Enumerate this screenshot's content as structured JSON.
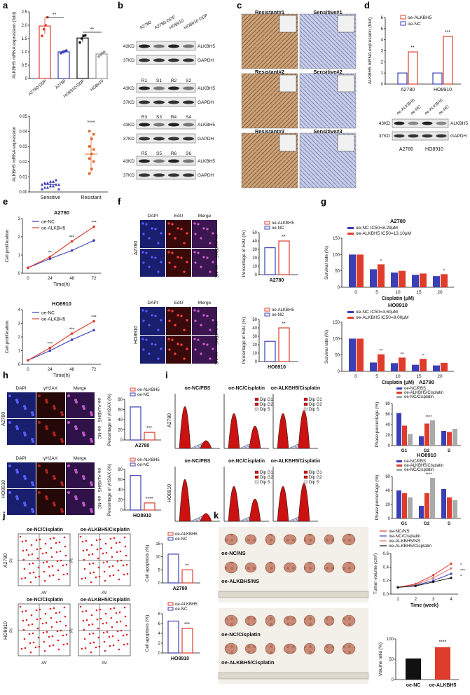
{
  "panel_labels": [
    "a",
    "b",
    "c",
    "d",
    "e",
    "f",
    "g",
    "h",
    "i",
    "j",
    "k"
  ],
  "panel_a": {
    "top": {
      "ylabel": "ALKBH5 mRNA expression (fold)",
      "categories": [
        "A2780-DDP",
        "A2780",
        "HO8910-DDP",
        "HO8910"
      ],
      "values": [
        1.97,
        1.0,
        1.52,
        0.92
      ],
      "errors": [
        0.3,
        0.08,
        0.15,
        0.1
      ],
      "points": [
        [
          1.6,
          1.85,
          2.0,
          2.3
        ],
        [
          0.95,
          1.0,
          1.02,
          1.05
        ],
        [
          1.35,
          1.5,
          1.6,
          1.62
        ],
        [
          0.82,
          0.9,
          0.95,
          1.0
        ]
      ],
      "colors": [
        "#e03c2c",
        "#3b3fb6",
        "#111111",
        "#999999"
      ],
      "yticks": [
        "0",
        "0.5",
        "1.0",
        "1.5",
        "2.0",
        "2.5"
      ],
      "ylim": [
        0,
        2.5
      ],
      "sig": [
        "**",
        "**"
      ]
    },
    "bottom": {
      "ylabel": "ALKBH5 mRNA expression",
      "categories": [
        "Sensitive",
        "Resistant"
      ],
      "means": [
        0.005,
        0.025
      ],
      "sd": [
        0.002,
        0.012
      ],
      "sensitive_points": [
        0.002,
        0.003,
        0.003,
        0.004,
        0.004,
        0.005,
        0.005,
        0.005,
        0.006,
        0.006,
        0.007,
        0.007,
        0.008,
        0.002
      ],
      "resistant_points": [
        0.012,
        0.015,
        0.02,
        0.022,
        0.025,
        0.028,
        0.03,
        0.035,
        0.038,
        0.04
      ],
      "colors": [
        "#3b3fb6",
        "#e06a2c"
      ],
      "yticks": [
        "0.00",
        "0.01",
        "0.02",
        "0.03",
        "0.04",
        "0.05"
      ],
      "ylim": [
        0,
        0.05
      ],
      "sig": "****"
    }
  },
  "panel_b": {
    "top_lanes": [
      "A2780",
      "A2780-DDP",
      "HO8910",
      "HO8910-DDP"
    ],
    "rows": [
      {
        "kd": "43KD",
        "name": "ALKBH5",
        "lanes": [
          "",
          "",
          "",
          ""
        ]
      },
      {
        "kd": "37KD",
        "name": "GAPDH",
        "lanes": [
          "",
          "",
          "",
          ""
        ]
      },
      {
        "kd": "43KD",
        "name": "ALKBH5",
        "lanes": [
          "R1",
          "S1",
          "R2",
          "S2"
        ]
      },
      {
        "kd": "37KD",
        "name": "GAPDH",
        "lanes": [
          "",
          "",
          "",
          ""
        ]
      },
      {
        "kd": "43KD",
        "name": "ALKBH5",
        "lanes": [
          "R3",
          "S3",
          "R4",
          "S4"
        ]
      },
      {
        "kd": "37KD",
        "name": "GAPDH",
        "lanes": [
          "",
          "",
          "",
          ""
        ]
      },
      {
        "kd": "43KD",
        "name": "ALKBH5",
        "lanes": [
          "R5",
          "S5",
          "R6",
          "S6"
        ]
      },
      {
        "kd": "37KD",
        "name": "GAPDH",
        "lanes": [
          "",
          "",
          "",
          ""
        ]
      }
    ]
  },
  "panel_c": {
    "tiles": [
      "Resistant#1",
      "Sensitive#1",
      "Resistant#2",
      "Sensitive#2",
      "Resistant#3",
      "Sensitive#3"
    ]
  },
  "panel_d": {
    "ylabel": "ALKBH5 mRNA expression (fold)",
    "legend": [
      "oe-ALKBH5",
      "oe-NC"
    ],
    "categories": [
      "A2780",
      "HO8910"
    ],
    "nc_values": [
      1.0,
      1.0
    ],
    "oe_values": [
      2.9,
      4.3
    ],
    "yticks": [
      "0",
      "1",
      "2",
      "3",
      "4",
      "5",
      "6"
    ],
    "ylim": [
      0,
      6
    ],
    "sig": [
      "**",
      "***"
    ],
    "blot_lanes": [
      "oe-ALKBH5",
      "oe-NC",
      "oe-ALKBH5",
      "oe-NC"
    ],
    "blot_rows": [
      {
        "kd": "43KD",
        "name": "ALKBH5"
      },
      {
        "kd": "37KD",
        "name": "GAPDH"
      }
    ],
    "blot_groups": [
      "A2780",
      "HO8910"
    ]
  },
  "panel_e": {
    "charts": [
      {
        "title": "A2780",
        "xlabel": "Time(h)",
        "ylabel": "Cell proliferation",
        "x": [
          0,
          24,
          48,
          72
        ],
        "series": [
          {
            "name": "oe-NC",
            "values": [
              0.3,
              0.8,
              1.25,
              1.8
            ],
            "color": "#3b3fb6"
          },
          {
            "name": "oe-ALKBH5",
            "values": [
              0.3,
              0.9,
              1.75,
              2.55
            ],
            "color": "#e03c2c"
          }
        ],
        "yticks": [
          "0",
          "1",
          "2",
          "3"
        ],
        "ylim": [
          0,
          3
        ],
        "sig": [
          "**",
          "***",
          "***"
        ]
      },
      {
        "title": "HO8910",
        "xlabel": "Time(h)",
        "ylabel": "Cell proliferation",
        "x": [
          0,
          24,
          48,
          72
        ],
        "series": [
          {
            "name": "oe-NC",
            "values": [
              0.3,
              1.0,
              1.8,
              2.5
            ],
            "color": "#3b3fb6"
          },
          {
            "name": "oe-ALKBH5",
            "values": [
              0.3,
              1.2,
              2.25,
              3.15
            ],
            "color": "#e03c2c"
          }
        ],
        "yticks": [
          "0",
          "1",
          "2",
          "3",
          "4"
        ],
        "ylim": [
          0,
          4
        ],
        "sig": [
          "***",
          "***",
          "***"
        ]
      }
    ]
  },
  "panel_f": {
    "cols": [
      "DAPI",
      "EdU",
      "Merge"
    ],
    "rowlabels": [
      "oe-ALKBH5",
      "oe-NC"
    ],
    "cells": [
      "A2780",
      "HO8910"
    ],
    "bars": [
      {
        "xlabel": "A2780",
        "ylabel": "Percentage of EdU (%)",
        "legend": [
          "oe-ALKBH5",
          "oe-NC"
        ],
        "values": [
          32,
          40
        ],
        "yticks": [
          "0",
          "10",
          "20",
          "30",
          "40",
          "50"
        ],
        "ylim": [
          0,
          50
        ],
        "sig": "**"
      },
      {
        "xlabel": "HO8910",
        "ylabel": "Percentage of EdU (%)",
        "legend": [
          "oe-ALKBH5",
          "oe-NC"
        ],
        "values": [
          24,
          40
        ],
        "yticks": [
          "0",
          "10",
          "20",
          "30",
          "40",
          "50"
        ],
        "ylim": [
          0,
          50
        ],
        "sig": "**"
      }
    ]
  },
  "panel_g": {
    "charts": [
      {
        "title": "A2780",
        "ylabel": "Survival rate (%)",
        "xlabel": "Cisplatin (μM)",
        "legend": [
          "oe-NC IC50=8.29μM",
          "oe-ALKBH5 IC50=13.10μM"
        ],
        "categories": [
          "0",
          "5",
          "10",
          "15",
          "20"
        ],
        "nc": [
          100,
          55,
          45,
          38,
          34
        ],
        "oe": [
          100,
          70,
          50,
          42,
          40
        ],
        "yticks": [
          "0",
          "50",
          "100",
          "150"
        ],
        "ylim": [
          0,
          150
        ],
        "sig": [
          "*",
          "",
          "",
          "*"
        ]
      },
      {
        "title": "HO8910",
        "ylabel": "Survival rate (%)",
        "xlabel": "Cisplatin (μM)",
        "legend": [
          "oe-NC IC50=3.60μM",
          "oe-ALKBH5 IC50=8.00μM"
        ],
        "categories": [
          "0",
          "5",
          "10",
          "15",
          "20"
        ],
        "nc": [
          100,
          27,
          25,
          20,
          18
        ],
        "oe": [
          100,
          52,
          42,
          38,
          26
        ],
        "yticks": [
          "0",
          "50",
          "100",
          "150"
        ],
        "ylim": [
          0,
          150
        ],
        "sig": [
          "**",
          "**",
          "*",
          ""
        ]
      }
    ]
  },
  "panel_h": {
    "cols": [
      "DAPI",
      "γH2AX",
      "Merge"
    ],
    "rowlabels": [
      "oe-ALKBH5",
      "oe-NC"
    ],
    "cells": [
      "A2780",
      "HO8910"
    ],
    "bars": [
      {
        "xlabel": "A2780",
        "ylabel": "Percentage of γH2AX (%)",
        "legend": [
          "oe-ALKBH5",
          "oe-NC"
        ],
        "values": [
          65,
          15
        ],
        "yticks": [
          "0",
          "20",
          "40",
          "60",
          "80"
        ],
        "ylim": [
          0,
          80
        ],
        "sig": "***"
      },
      {
        "xlabel": "HO8910",
        "ylabel": "Percentage of γH2AX (%)",
        "legend": [
          "oe-ALKBH5",
          "oe-NC"
        ],
        "values": [
          68,
          14
        ],
        "yticks": [
          "0",
          "20",
          "40",
          "60",
          "80"
        ],
        "ylim": [
          0,
          80
        ],
        "sig": "****"
      }
    ]
  },
  "panel_i": {
    "cols": [
      "oe-NC/PBS",
      "oe-NC/Cisplatin",
      "oe-ALKBH5/Cisplatin"
    ],
    "cells": [
      "A2780",
      "HO8910"
    ],
    "hist_legend": [
      "Dip G1",
      "Dip G2",
      "Dip S"
    ],
    "bars": [
      {
        "title": "A2780",
        "ylabel": "Phase percentage (%)",
        "categories": [
          "G1",
          "G2",
          "S"
        ],
        "legend": [
          "oe-NC/PBS",
          "oe-ALKBH5/Cisplatin",
          "oe-NC/Cisplatin"
        ],
        "series": [
          [
            62,
            18,
            28
          ],
          [
            38,
            42,
            26
          ],
          [
            22,
            48,
            32
          ]
        ],
        "yticks": [
          "0",
          "20",
          "40",
          "60",
          "80"
        ],
        "ylim": [
          0,
          80
        ],
        "sig": "****"
      },
      {
        "title": "HO8910",
        "ylabel": "Phase percentage (%)",
        "categories": [
          "G1",
          "G2",
          "S"
        ],
        "legend": [
          "oe-NC/PBS",
          "oe-ALKBH5/Cisplatin",
          "oe-NC/Cisplatin"
        ],
        "series": [
          [
            40,
            18,
            42
          ],
          [
            36,
            36,
            30
          ],
          [
            30,
            58,
            26
          ]
        ],
        "yticks": [
          "0",
          "20",
          "40",
          "60"
        ],
        "ylim": [
          0,
          60
        ],
        "sig": "****"
      }
    ]
  },
  "panel_j": {
    "cols": [
      "oe-NC/Cisplatin",
      "oe-ALKBH5/Cisplatin"
    ],
    "cells": [
      "A2780",
      "HO8910"
    ],
    "axis_x": "AV",
    "axis_y": "PI",
    "bars": [
      {
        "xlabel": "A2780",
        "ylabel": "Cell apoptosis (%)",
        "legend": [
          "oe-ALKBH5",
          "oe-NC"
        ],
        "values": [
          11,
          5
        ],
        "yticks": [
          "0",
          "5",
          "10",
          "15"
        ],
        "ylim": [
          0,
          15
        ],
        "sig": "**"
      },
      {
        "xlabel": "HO8910",
        "ylabel": "Cell apoptosis (%)",
        "legend": [
          "oe-ALKBH5",
          "oe-NC"
        ],
        "values": [
          6.5,
          5
        ],
        "yticks": [
          "0",
          "2",
          "4",
          "6",
          "8"
        ],
        "ylim": [
          0,
          8
        ],
        "sig": "***"
      }
    ]
  },
  "panel_k": {
    "photo_labels": [
      "oe-NC/NS",
      "oe-ALKBH5/NS",
      "oe-NC/Cisplatin",
      "oe-ALKBH5/Cisplatin"
    ],
    "line": {
      "xlabel": "Time (week)",
      "ylabel": "Tumor volume (cm³)",
      "x": [
        1,
        2,
        3,
        4
      ],
      "series": [
        {
          "name": "oe-NC/NS",
          "values": [
            0.1,
            0.15,
            0.28,
            0.45
          ],
          "color": "#e03c2c"
        },
        {
          "name": "oe-NC/Cisplatin",
          "values": [
            0.1,
            0.13,
            0.2,
            0.3
          ],
          "color": "#3b3fb6"
        },
        {
          "name": "oe-ALKBH5/NS",
          "values": [
            0.1,
            0.14,
            0.24,
            0.38
          ],
          "color": "#e07070"
        },
        {
          "name": "oe-ALKBH5/Cisplatin",
          "values": [
            0.1,
            0.12,
            0.18,
            0.24
          ],
          "color": "#111111"
        }
      ],
      "yticks": [
        "0.0",
        "0.2",
        "0.4",
        "0.6"
      ],
      "ylim": [
        0,
        0.6
      ],
      "sig": [
        "*",
        "***",
        "*"
      ]
    },
    "bar": {
      "ylabel": "Volume ratio (%)",
      "categories": [
        "oe-NC",
        "oe-ALKBH5"
      ],
      "values": [
        52,
        80
      ],
      "colors": [
        "#111111",
        "#e03c2c"
      ],
      "yticks": [
        "0",
        "50",
        "100"
      ],
      "ylim": [
        0,
        100
      ],
      "sig": "****"
    }
  }
}
